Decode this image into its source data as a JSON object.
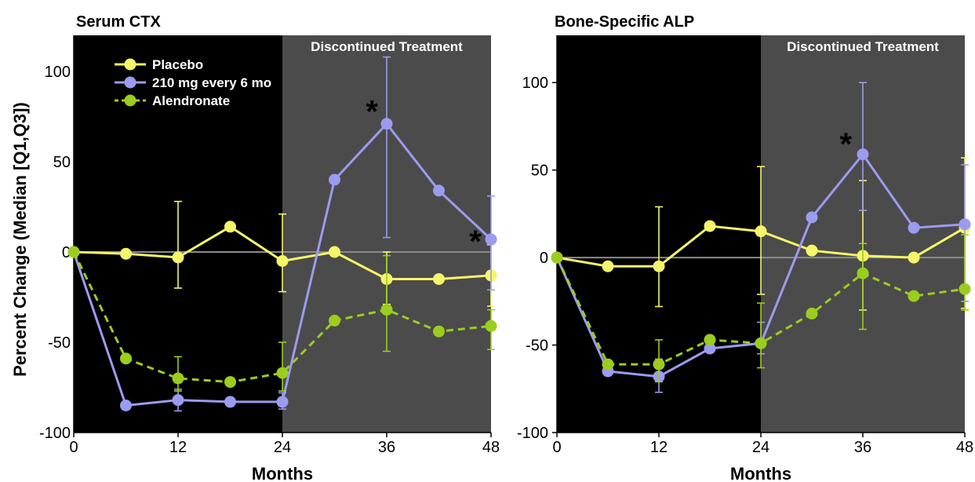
{
  "figure": {
    "shared_ylabel": "Percent Change (Median [Q1,Q3])"
  },
  "chart_data": [
    {
      "type": "line",
      "title": "Serum CTX",
      "xlabel": "Months",
      "ylabel": "Percent Change (Median [Q1,Q3])",
      "xlim": [
        0,
        48
      ],
      "ylim": [
        -100,
        120
      ],
      "xticks": [
        "0",
        "12",
        "24",
        "36",
        "48"
      ],
      "yticks": [
        "-100",
        "-50",
        "0",
        "50",
        "100"
      ],
      "shaded_region": {
        "label": "Discontinued Treatment",
        "x_start": 24,
        "x_end": 48
      },
      "legend_position": "top-left",
      "series": [
        {
          "name": "Placebo",
          "color": "#f5f56a",
          "dash": false,
          "points": [
            {
              "x": 0,
              "y": 0
            },
            {
              "x": 6,
              "y": -1
            },
            {
              "x": 12,
              "y": -3,
              "lo": -20,
              "hi": 28
            },
            {
              "x": 18,
              "y": 14
            },
            {
              "x": 24,
              "y": -5,
              "lo": -22,
              "hi": 21
            },
            {
              "x": 30,
              "y": 0
            },
            {
              "x": 36,
              "y": -15,
              "lo": -29,
              "hi": 0
            },
            {
              "x": 42,
              "y": -15
            },
            {
              "x": 48,
              "y": -13,
              "lo": -30,
              "hi": 4
            }
          ]
        },
        {
          "name": "210 mg every 6 mo",
          "color": "#9b9bf0",
          "dash": false,
          "points": [
            {
              "x": 0,
              "y": 0
            },
            {
              "x": 6,
              "y": -85
            },
            {
              "x": 12,
              "y": -82,
              "lo": -88,
              "hi": -76
            },
            {
              "x": 18,
              "y": -83
            },
            {
              "x": 24,
              "y": -83,
              "lo": -87,
              "hi": -78
            },
            {
              "x": 30,
              "y": 40
            },
            {
              "x": 36,
              "y": 71,
              "lo": 8,
              "hi": 108
            },
            {
              "x": 42,
              "y": 34
            },
            {
              "x": 48,
              "y": 7,
              "lo": -21,
              "hi": 31
            }
          ]
        },
        {
          "name": "Alendronate",
          "color": "#9acd1e",
          "dash": true,
          "points": [
            {
              "x": 0,
              "y": 0
            },
            {
              "x": 6,
              "y": -59
            },
            {
              "x": 12,
              "y": -70,
              "lo": -77,
              "hi": -58
            },
            {
              "x": 18,
              "y": -72
            },
            {
              "x": 24,
              "y": -67,
              "lo": -77,
              "hi": -50
            },
            {
              "x": 30,
              "y": -38
            },
            {
              "x": 36,
              "y": -32,
              "lo": -55,
              "hi": -2
            },
            {
              "x": 42,
              "y": -44
            },
            {
              "x": 48,
              "y": -41,
              "lo": -54,
              "hi": -32
            }
          ]
        }
      ],
      "annotations": [
        {
          "text": "*",
          "x": 34.3,
          "y": 78
        },
        {
          "text": "*",
          "x": 46.2,
          "y": 6
        }
      ]
    },
    {
      "type": "line",
      "title": "Bone-Specific ALP",
      "xlabel": "Months",
      "xlim": [
        0,
        48
      ],
      "ylim": [
        -100,
        127
      ],
      "xticks": [
        "0",
        "12",
        "24",
        "36",
        "48"
      ],
      "yticks": [
        "-100",
        "-50",
        "0",
        "50",
        "100"
      ],
      "shaded_region": {
        "label": "Discontinued Treatment",
        "x_start": 24,
        "x_end": 48
      },
      "series": [
        {
          "name": "Placebo",
          "color": "#f5f56a",
          "dash": false,
          "points": [
            {
              "x": 0,
              "y": 0
            },
            {
              "x": 6,
              "y": -5
            },
            {
              "x": 12,
              "y": -5,
              "lo": -28,
              "hi": 29
            },
            {
              "x": 18,
              "y": 18
            },
            {
              "x": 24,
              "y": 15,
              "lo": -21,
              "hi": 52
            },
            {
              "x": 30,
              "y": 4
            },
            {
              "x": 36,
              "y": 1,
              "lo": -30,
              "hi": 44
            },
            {
              "x": 42,
              "y": 0
            },
            {
              "x": 48,
              "y": 17,
              "lo": -29,
              "hi": 57
            }
          ]
        },
        {
          "name": "210 mg every 6 mo",
          "color": "#9b9bf0",
          "dash": false,
          "points": [
            {
              "x": 0,
              "y": 0
            },
            {
              "x": 6,
              "y": -65
            },
            {
              "x": 12,
              "y": -68,
              "lo": -77,
              "hi": -58
            },
            {
              "x": 18,
              "y": -52
            },
            {
              "x": 24,
              "y": -49,
              "lo": -55,
              "hi": -37
            },
            {
              "x": 30,
              "y": 23
            },
            {
              "x": 36,
              "y": 59,
              "lo": 27,
              "hi": 100
            },
            {
              "x": 42,
              "y": 17
            },
            {
              "x": 48,
              "y": 19,
              "lo": -25,
              "hi": 53
            }
          ]
        },
        {
          "name": "Alendronate",
          "color": "#9acd1e",
          "dash": true,
          "points": [
            {
              "x": 0,
              "y": 0
            },
            {
              "x": 6,
              "y": -61
            },
            {
              "x": 12,
              "y": -61,
              "lo": -71,
              "hi": -47
            },
            {
              "x": 18,
              "y": -47
            },
            {
              "x": 24,
              "y": -49,
              "lo": -63,
              "hi": -26
            },
            {
              "x": 30,
              "y": -32
            },
            {
              "x": 36,
              "y": -9,
              "lo": -41,
              "hi": 8
            },
            {
              "x": 42,
              "y": -22
            },
            {
              "x": 48,
              "y": -18,
              "lo": -30,
              "hi": 13
            }
          ]
        }
      ],
      "annotations": [
        {
          "text": "*",
          "x": 34.0,
          "y": 65
        }
      ]
    }
  ]
}
